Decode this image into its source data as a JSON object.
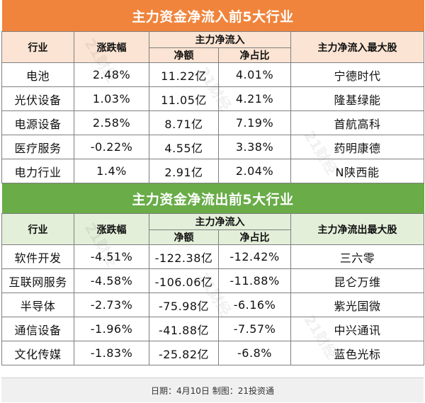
{
  "inflow": {
    "title": "主力资金净流入前5大行业",
    "headers": {
      "industry": "行业",
      "change": "涨跌幅",
      "group": "主力净流入",
      "amount": "净额",
      "ratio": "净占比",
      "stock": "主力净流入最大股"
    },
    "rows": [
      {
        "industry": "电池",
        "change": "2.48%",
        "amount": "11.22亿",
        "ratio": "4.01%",
        "stock": "宁德时代"
      },
      {
        "industry": "光伏设备",
        "change": "1.03%",
        "amount": "11.05亿",
        "ratio": "4.21%",
        "stock": "隆基绿能"
      },
      {
        "industry": "电源设备",
        "change": "2.58%",
        "amount": "8.71亿",
        "ratio": "7.19%",
        "stock": "首航高科"
      },
      {
        "industry": "医疗服务",
        "change": "-0.22%",
        "amount": "4.55亿",
        "ratio": "3.38%",
        "stock": "药明康德"
      },
      {
        "industry": "电力行业",
        "change": "1.4%",
        "amount": "2.91亿",
        "ratio": "2.04%",
        "stock": "N陕西能"
      }
    ]
  },
  "outflow": {
    "title": "主力资金净流出前5大行业",
    "headers": {
      "industry": "行业",
      "change": "涨跌幅",
      "group": "主力净流入",
      "amount": "净额",
      "ratio": "净占比",
      "stock": "主力净流出最大股"
    },
    "rows": [
      {
        "industry": "软件开发",
        "change": "-4.51%",
        "amount": "-122.38亿",
        "ratio": "-12.42%",
        "stock": "三六零"
      },
      {
        "industry": "互联网服务",
        "change": "-4.58%",
        "amount": "-106.06亿",
        "ratio": "-11.88%",
        "stock": "昆仑万维"
      },
      {
        "industry": "半导体",
        "change": "-2.73%",
        "amount": "-75.98亿",
        "ratio": "-6.16%",
        "stock": "紫光国微"
      },
      {
        "industry": "通信设备",
        "change": "-1.96%",
        "amount": "-41.88亿",
        "ratio": "-7.57%",
        "stock": "中兴通讯"
      },
      {
        "industry": "文化传媒",
        "change": "-1.83%",
        "amount": "-25.82亿",
        "ratio": "-6.8%",
        "stock": "蓝色光标"
      }
    ]
  },
  "footer": "日期：4月10日  制图：21投资通",
  "watermark": "21财经",
  "colors": {
    "inflow_accent": "#f0843c",
    "outflow_accent": "#69ac48"
  }
}
